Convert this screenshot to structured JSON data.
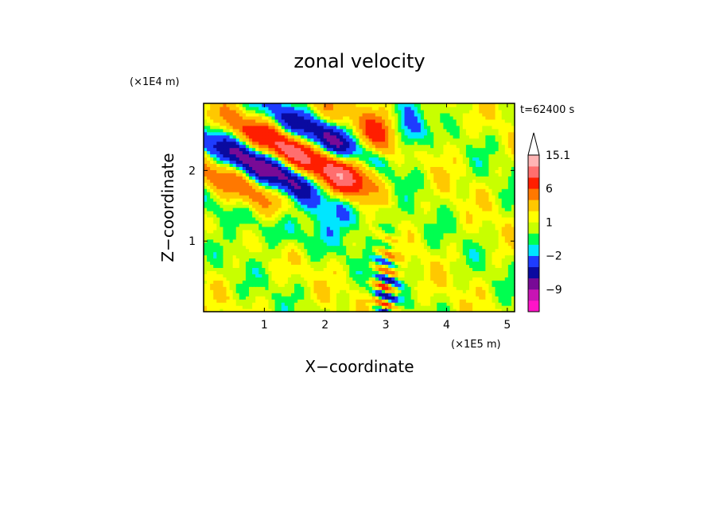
{
  "chart_data": {
    "type": "heatmap",
    "title": "zonal velocity",
    "xlabel": "X−coordinate",
    "ylabel": "Z−coordinate",
    "x_multiplier": "(×1E5 m)",
    "y_multiplier": "(×1E4 m)",
    "time_label": "t=62400 s",
    "xlim": [
      0,
      5.12
    ],
    "ylim": [
      0,
      2.95
    ],
    "x_ticks": [
      1,
      2,
      3,
      4,
      5
    ],
    "x_tick_labels": [
      "1",
      "2",
      "3",
      "4",
      "5"
    ],
    "y_ticks": [
      1,
      2
    ],
    "y_tick_labels": [
      "1",
      "2"
    ],
    "colorbar": {
      "levels": [
        -15,
        -12,
        -9,
        -6,
        -4,
        -2,
        -1,
        0,
        1,
        2,
        4,
        6,
        9,
        12,
        15.1
      ],
      "colors": [
        "#ff14c8",
        "#c814b4",
        "#780a96",
        "#0a0aa0",
        "#1e3cff",
        "#00e6ff",
        "#00ff50",
        "#c8ff00",
        "#ffff00",
        "#ffc800",
        "#ff7800",
        "#ff1e00",
        "#ff6e6e",
        "#ffb4b4"
      ],
      "extend_top_color": "#ffffff",
      "labels": [
        {
          "value": 15.1,
          "text": "15.1"
        },
        {
          "value": 6,
          "text": "6"
        },
        {
          "value": 1,
          "text": "1"
        },
        {
          "value": -2,
          "text": "−2"
        },
        {
          "value": -9,
          "text": "−9"
        }
      ]
    },
    "field_description": "zonal velocity field u(x,z); background mostly 0 to 2 (green/yellow), jet bands of +6..+9 (orange) and -6..-9 (blue) tilted across upper-left, weak negative (cyan) patches mid-domain, alternating narrow cells near x=3 at low z"
  }
}
